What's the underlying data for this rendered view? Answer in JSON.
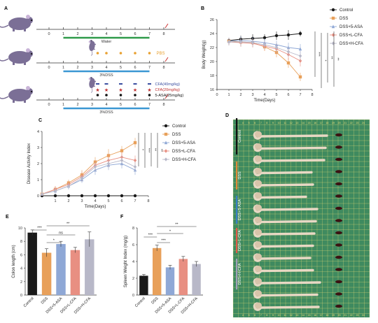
{
  "colors": {
    "control": "#1a1a1a",
    "dss": "#e8a05a",
    "asa": "#8fa8d6",
    "lcfa": "#e88f82",
    "hcfa": "#b8b8c8",
    "green_bar": "#2e9a4a",
    "blue_bar": "#3b97d3",
    "photo_bg": "#3f8a5f",
    "mouse": "#7b6f96"
  },
  "panel_letters": {
    "a": "A",
    "b": "B",
    "c": "C",
    "d": "D",
    "e": "E",
    "f": "F"
  },
  "timeline": {
    "days": [
      "0",
      "1",
      "2",
      "3",
      "4",
      "5",
      "6",
      "7",
      "8"
    ],
    "row1_label": "Water",
    "row2_legend": "PBS",
    "row2_label": "3%DSS",
    "row3_legend": [
      "CFA(40mg/kg)",
      "CFA(20mg/kg)",
      "5-ASA(25mg/kg)"
    ],
    "row3_label": "3%DSS"
  },
  "chart_data": [
    {
      "id": "B",
      "type": "line",
      "xlabel": "Time(Days)",
      "ylabel": "Body Weight(g)",
      "x": [
        1,
        2,
        3,
        4,
        5,
        6,
        7
      ],
      "xlim": [
        0,
        8
      ],
      "ylim": [
        16,
        26
      ],
      "yticks": [
        16,
        18,
        20,
        22,
        24,
        26
      ],
      "xticks": [
        0,
        1,
        2,
        3,
        4,
        5,
        6,
        7,
        8
      ],
      "series": [
        {
          "name": "Control",
          "color_key": "control",
          "marker": "circle",
          "values": [
            23.0,
            23.2,
            23.3,
            23.4,
            23.7,
            23.8,
            24.0
          ],
          "err": [
            0.4,
            0.5,
            0.6,
            0.5,
            0.6,
            0.7,
            0.4
          ]
        },
        {
          "name": "DSS",
          "color_key": "dss",
          "marker": "square",
          "values": [
            22.9,
            22.8,
            22.7,
            22.1,
            21.3,
            19.8,
            17.8
          ],
          "err": [
            0.5,
            0.6,
            0.6,
            0.6,
            0.7,
            0.7,
            0.6
          ]
        },
        {
          "name": "DSS+5-ASA",
          "color_key": "asa",
          "marker": "triangle",
          "values": [
            22.9,
            23.0,
            22.9,
            22.7,
            22.4,
            22.0,
            21.8
          ],
          "err": [
            0.5,
            0.6,
            0.6,
            0.6,
            0.6,
            0.7,
            0.7
          ]
        },
        {
          "name": "DSS+L-CFA",
          "color_key": "lcfa",
          "marker": "diamond",
          "values": [
            22.8,
            22.7,
            22.6,
            22.2,
            21.8,
            21.0,
            20.1
          ],
          "err": [
            0.5,
            0.6,
            0.6,
            0.6,
            0.7,
            0.8,
            0.8
          ]
        },
        {
          "name": "DSS+H-CFA",
          "color_key": "hcfa",
          "marker": "diamond",
          "values": [
            22.8,
            22.8,
            22.7,
            22.4,
            22.0,
            21.4,
            20.8
          ],
          "err": [
            0.5,
            0.6,
            0.6,
            0.6,
            0.7,
            0.7,
            0.7
          ]
        }
      ],
      "significance": [
        "***",
        "*",
        "**",
        "**"
      ]
    },
    {
      "id": "C",
      "type": "line",
      "xlabel": "Time(Days)",
      "ylabel": "Disease Activity Index",
      "x": [
        0,
        1,
        2,
        3,
        4,
        5,
        6,
        7
      ],
      "xlim": [
        0,
        8
      ],
      "ylim": [
        0,
        4
      ],
      "yticks": [
        0,
        1,
        2,
        3,
        4
      ],
      "xticks": [
        1,
        2,
        3,
        4,
        5,
        6,
        7,
        8
      ],
      "series": [
        {
          "name": "Control",
          "color_key": "control",
          "marker": "circle",
          "values": [
            0,
            0,
            0,
            0,
            0,
            0,
            0,
            0
          ],
          "err": [
            0,
            0,
            0,
            0,
            0,
            0,
            0,
            0
          ]
        },
        {
          "name": "DSS",
          "color_key": "dss",
          "marker": "square",
          "values": [
            0.1,
            0.4,
            0.8,
            1.3,
            2.1,
            2.5,
            2.8,
            3.3
          ],
          "err": [
            0.1,
            0.2,
            0.2,
            0.3,
            0.3,
            0.4,
            0.3,
            0.3
          ]
        },
        {
          "name": "DSS+5-ASA",
          "color_key": "asa",
          "marker": "triangle",
          "values": [
            0.1,
            0.3,
            0.6,
            1.0,
            1.6,
            1.9,
            2.0,
            1.6
          ],
          "err": [
            0.1,
            0.2,
            0.2,
            0.2,
            0.3,
            0.3,
            0.3,
            0.3
          ]
        },
        {
          "name": "DSS+L-CFA",
          "color_key": "lcfa",
          "marker": "diamond",
          "values": [
            0.1,
            0.4,
            0.7,
            1.2,
            1.9,
            2.2,
            2.4,
            2.2
          ],
          "err": [
            0.1,
            0.2,
            0.2,
            0.3,
            0.3,
            0.4,
            0.3,
            0.3
          ]
        },
        {
          "name": "DSS+H-CFA",
          "color_key": "hcfa",
          "marker": "diamond",
          "values": [
            0.1,
            0.3,
            0.6,
            1.1,
            1.8,
            2.0,
            2.2,
            1.8
          ],
          "err": [
            0.1,
            0.2,
            0.2,
            0.2,
            0.3,
            0.3,
            0.3,
            0.3
          ]
        }
      ],
      "significance": [
        "*",
        "***",
        "**",
        "**"
      ]
    },
    {
      "id": "E",
      "type": "bar",
      "ylabel": "Colon length (cm)",
      "categories": [
        "Control",
        "DSS",
        "DSS+5-ASA",
        "DSS+L-CFA",
        "DSS+H-CFA"
      ],
      "values": [
        9.3,
        6.3,
        7.6,
        6.7,
        8.3
      ],
      "err": [
        0.4,
        0.6,
        0.4,
        0.4,
        1.1
      ],
      "ylim": [
        0,
        10
      ],
      "yticks": [
        0,
        2,
        4,
        6,
        8,
        10
      ],
      "significance": [
        {
          "from": 0,
          "to": 1,
          "label": "***"
        },
        {
          "from": 1,
          "to": 2,
          "label": "*"
        },
        {
          "from": 1,
          "to": 3,
          "label": "ns"
        },
        {
          "from": 1,
          "to": 4,
          "label": "**"
        }
      ]
    },
    {
      "id": "F",
      "type": "bar",
      "ylabel": "Spleen Weight Index (mg/g)",
      "categories": [
        "Control",
        "DSS",
        "DSS+5-ASA",
        "DSS+L-CFA",
        "DSS+H-CFA"
      ],
      "values": [
        2.3,
        5.6,
        3.3,
        4.3,
        3.7
      ],
      "err": [
        0.15,
        0.35,
        0.25,
        0.3,
        0.3
      ],
      "ylim": [
        0,
        8
      ],
      "yticks": [
        0,
        2,
        4,
        6,
        8
      ],
      "significance": [
        {
          "from": 1,
          "to": 2,
          "label": "***"
        },
        {
          "from": 0,
          "to": 1,
          "label": "***"
        },
        {
          "from": 1,
          "to": 3,
          "label": "*"
        },
        {
          "from": 1,
          "to": 4,
          "label": "**"
        }
      ]
    }
  ],
  "photo": {
    "groups": [
      "Control",
      "DSS",
      "DSS+5-ASA",
      "DSS+L-CFA",
      "DSS+H-CFA"
    ],
    "ruler_numbers": [
      "4",
      "5",
      "6",
      "7",
      "8",
      "9",
      "10",
      "11",
      "12",
      "13",
      "14",
      "15",
      "16",
      "17",
      "18",
      "19",
      "20",
      "21",
      "22",
      "23",
      "24"
    ]
  }
}
